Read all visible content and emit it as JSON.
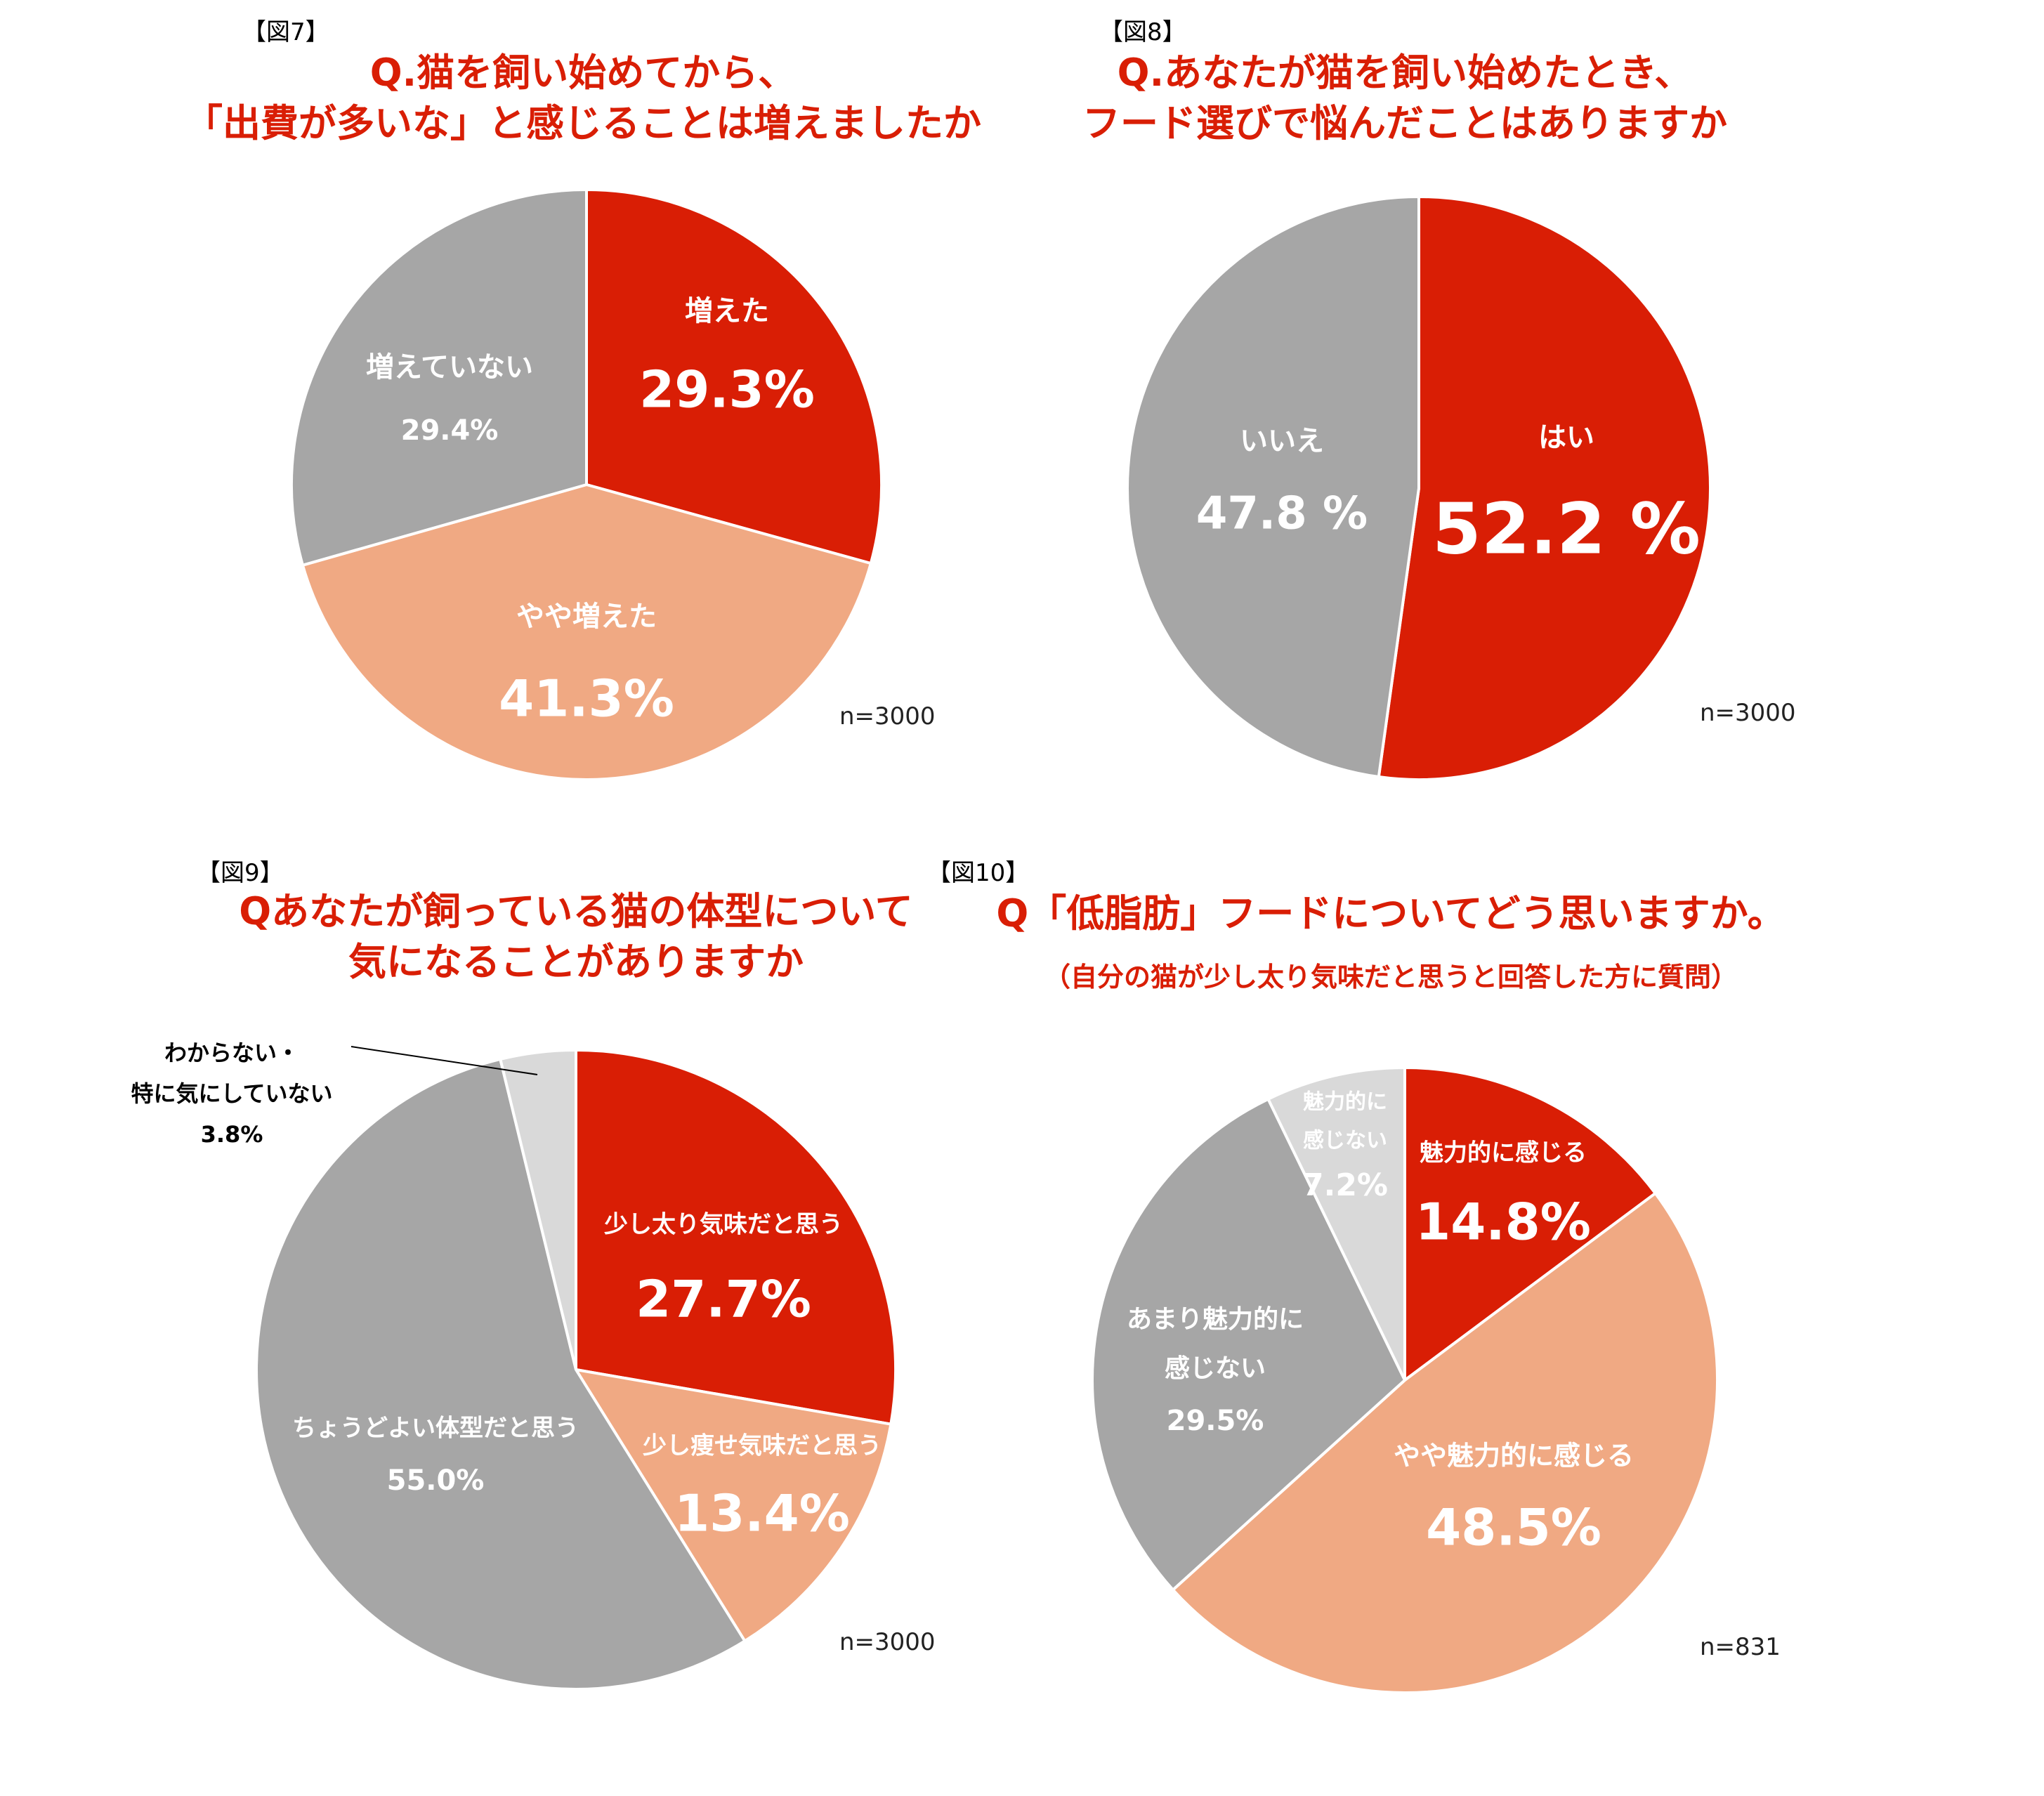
{
  "colors": {
    "red": "#d91e05",
    "salmon": "#f0a983",
    "gray": "#a6a6a6",
    "lightgray": "#d9d9d9"
  },
  "chart_data": [
    {
      "type": "pie",
      "fig_label": "【図7】",
      "title_lines": [
        "Q.猫を飼い始めてから、",
        "「出費が多いな」と感じることは増えましたか"
      ],
      "n": "n=3000",
      "slices": [
        {
          "label": "増えた",
          "value": 29.3,
          "value_label": "29.3%",
          "color": "#d91e05"
        },
        {
          "label": "やや増えた",
          "value": 41.3,
          "value_label": "41.3%",
          "color": "#f0a983"
        },
        {
          "label": "増えていない",
          "value": 29.4,
          "value_label": "29.4%",
          "color": "#a6a6a6"
        }
      ]
    },
    {
      "type": "pie",
      "fig_label": "【図8】",
      "title_lines": [
        "Q.あなたが猫を飼い始めたとき、",
        "フード選びで悩んだことはありますか"
      ],
      "n": "n=3000",
      "slices": [
        {
          "label": "はい",
          "value": 52.2,
          "value_label": "52.2 %",
          "color": "#d91e05"
        },
        {
          "label": "いいえ",
          "value": 47.8,
          "value_label": "47.8 %",
          "color": "#a6a6a6"
        }
      ]
    },
    {
      "type": "pie",
      "fig_label": "【図9】",
      "title_lines": [
        "Qあなたが飼っている猫の体型について",
        "気になることがありますか"
      ],
      "n": "n=3000",
      "slices": [
        {
          "label": "少し太り気味だと思う",
          "value": 27.7,
          "value_label": "27.7%",
          "color": "#d91e05"
        },
        {
          "label": "少し痩せ気味だと思う",
          "value": 13.4,
          "value_label": "13.4%",
          "color": "#f0a983"
        },
        {
          "label": "ちょうどよい体型だと思う",
          "value": 55.0,
          "value_label": "55.0%",
          "color": "#a6a6a6"
        },
        {
          "label": "わからない・特に気にしていない",
          "label_lines": [
            "わからない・",
            "特に気にしていない"
          ],
          "value": 3.8,
          "value_label": "3.8%",
          "color": "#d9d9d9"
        }
      ]
    },
    {
      "type": "pie",
      "fig_label": "【図10】",
      "title_lines": [
        "Q「低脂肪」フードについてどう思いますか。"
      ],
      "subtitle": "（自分の猫が少し太り気味だと思うと回答した方に質問）",
      "n": "n=831",
      "slices": [
        {
          "label": "魅力的に感じる",
          "value": 14.8,
          "value_label": "14.8%",
          "color": "#d91e05"
        },
        {
          "label": "やや魅力的に感じる",
          "value": 48.5,
          "value_label": "48.5%",
          "color": "#f0a983"
        },
        {
          "label": "あまり魅力的に感じない",
          "label_lines": [
            "あまり魅力的に",
            "感じない"
          ],
          "value": 29.5,
          "value_label": "29.5%",
          "color": "#a6a6a6"
        },
        {
          "label": "魅力的に感じない",
          "label_lines": [
            "魅力的に",
            "感じない"
          ],
          "value": 7.2,
          "value_label": "7.2%",
          "color": "#d9d9d9"
        }
      ]
    }
  ]
}
